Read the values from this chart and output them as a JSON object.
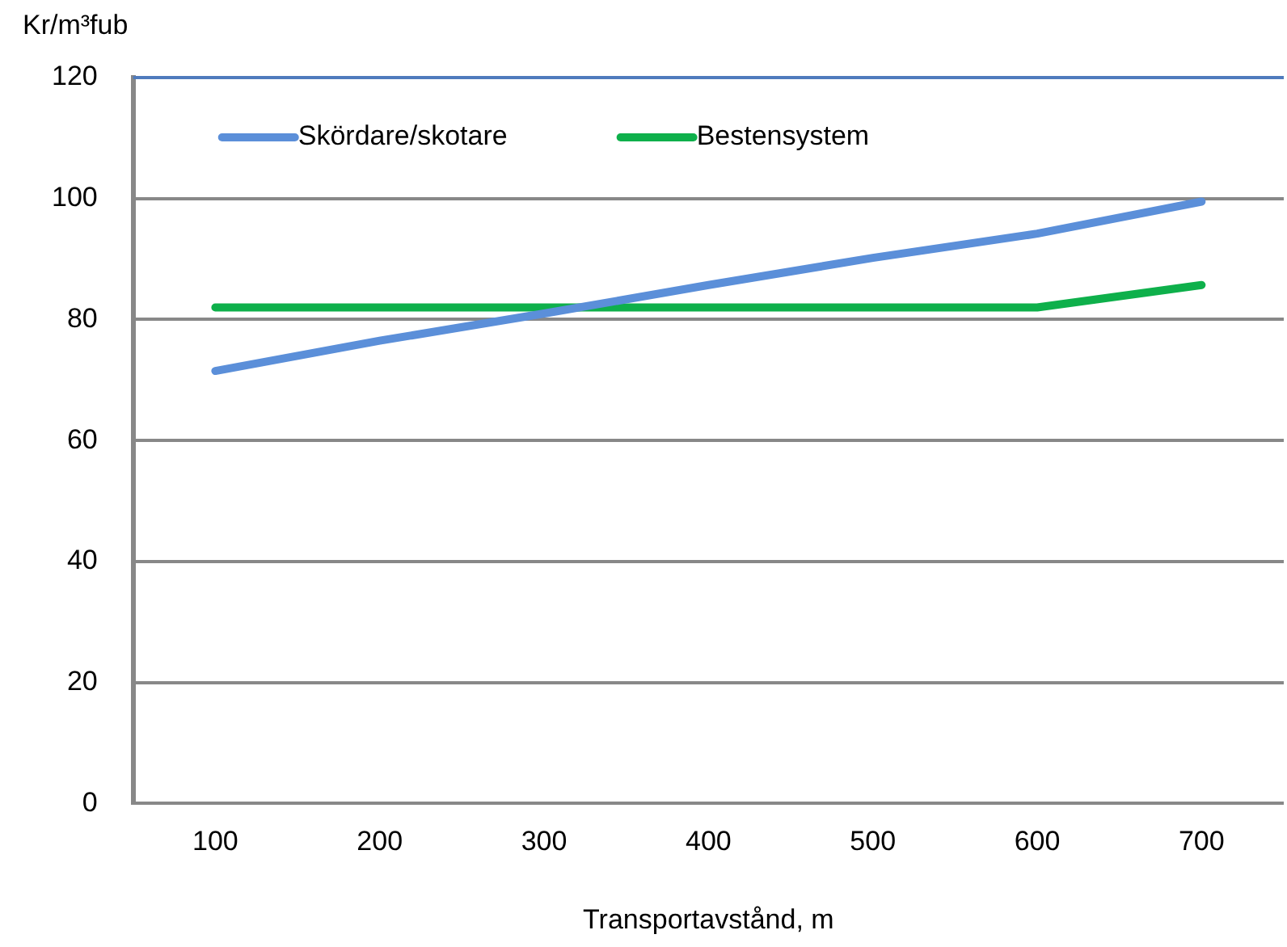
{
  "chart_data": {
    "type": "line",
    "ylabel": "Kr/m³fub",
    "xlabel": "Transportavstånd, m",
    "categories": [
      "100",
      "200",
      "300",
      "400",
      "500",
      "600",
      "700"
    ],
    "series": [
      {
        "name": "Skördare/skotare",
        "color": "#5b8fd9",
        "values": [
          71.5,
          76.5,
          81,
          85.7,
          90.2,
          94.2,
          99.5
        ]
      },
      {
        "name": "Bestensystem",
        "color": "#0eb04b",
        "values": [
          82,
          82,
          82,
          82,
          82,
          82,
          85.7
        ]
      }
    ],
    "ylim": [
      0,
      120
    ],
    "yticks": [
      0,
      20,
      40,
      60,
      80,
      100,
      120
    ],
    "grid": "y",
    "legend": "top left",
    "marker": "none",
    "line_style": "solid"
  }
}
